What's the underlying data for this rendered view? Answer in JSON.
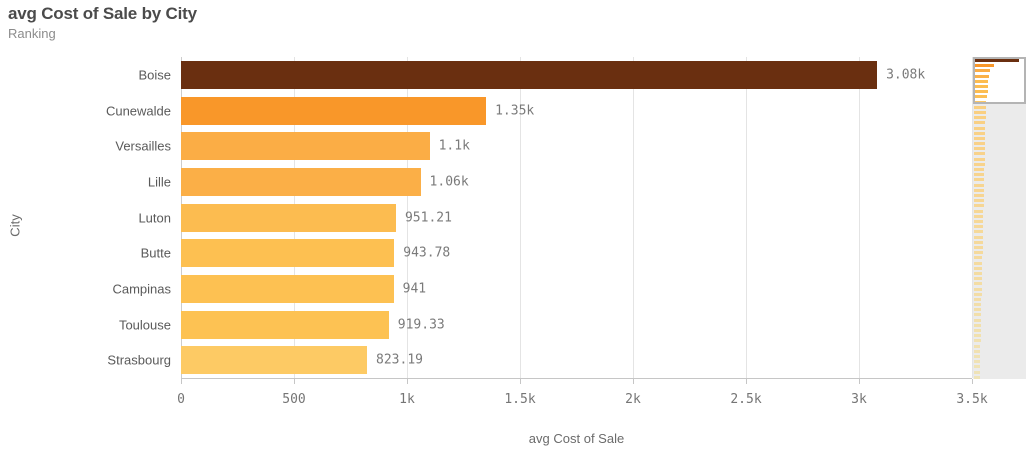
{
  "header": {
    "title": "avg Cost of Sale by City",
    "subtitle": "Ranking"
  },
  "chart_data": {
    "type": "bar",
    "orientation": "horizontal",
    "title": "avg Cost of Sale by City",
    "subtitle": "Ranking",
    "xlabel": "avg Cost of Sale",
    "ylabel": "City",
    "xlim": [
      0,
      3500
    ],
    "x_ticks": [
      "0",
      "500",
      "1k",
      "1.5k",
      "2k",
      "2.5k",
      "3k",
      "3.5k"
    ],
    "x_tick_values": [
      0,
      500,
      1000,
      1500,
      2000,
      2500,
      3000,
      3500
    ],
    "grid": true,
    "legend": false,
    "categories": [
      "Boise",
      "Cunewalde",
      "Versailles",
      "Lille",
      "Luton",
      "Butte",
      "Campinas",
      "Toulouse",
      "Strasbourg"
    ],
    "values": [
      3080,
      1350,
      1100,
      1060,
      951.21,
      943.78,
      941,
      919.33,
      823.19
    ],
    "value_labels": [
      "3.08k",
      "1.35k",
      "1.1k",
      "1.06k",
      "951.21",
      "943.78",
      "941",
      "919.33",
      "823.19"
    ],
    "bar_colors": [
      "#6A2F10",
      "#F99729",
      "#FBAD45",
      "#FBAF47",
      "#FCBC50",
      "#FDC051",
      "#FDC152",
      "#FDC253",
      "#FDCA64"
    ]
  },
  "style": {
    "grid_color": "#e4e4e4",
    "axis_color": "#c6c6c6",
    "tick_text_color": "#757575",
    "value_text_color": "#7a7a7a",
    "category_text_color": "#5a5a5a",
    "title_color": "#4b4b4b",
    "subtitle_color": "#8c8c8c"
  },
  "minimap": {
    "total_bars": 62,
    "visible_bars": 9,
    "tail_start_value": 812,
    "tail_end_value": 390,
    "overlay_color": "#ebebeb",
    "viewport_border_color": "#b4b4b4",
    "color_scale": [
      [
        1350,
        "#F99729"
      ],
      [
        1100,
        "#FBAD45"
      ],
      [
        950,
        "#FCBC50"
      ],
      [
        820,
        "#FDC765"
      ],
      [
        600,
        "#F8D587"
      ],
      [
        390,
        "#F0E2AB"
      ]
    ],
    "top_bar_color": "#6A2F10"
  }
}
